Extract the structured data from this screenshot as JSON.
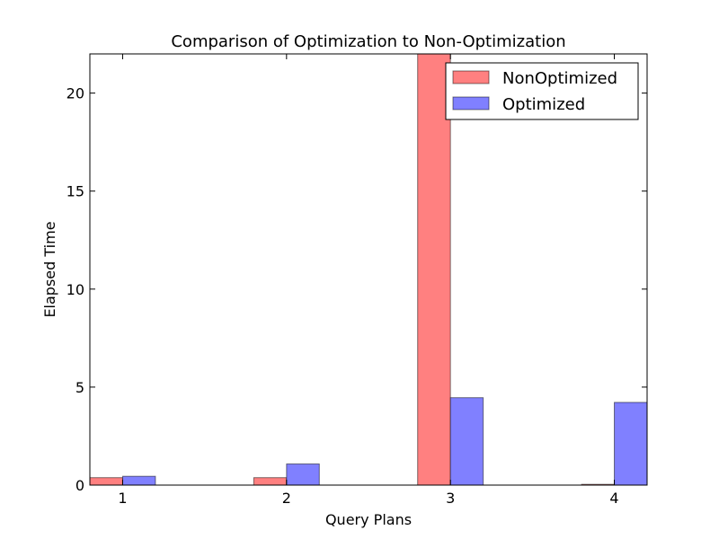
{
  "chart_data": {
    "type": "bar",
    "title": "Comparison of Optimization to Non-Optimization",
    "xlabel": "Query Plans",
    "ylabel": "Elapsed Time",
    "categories": [
      "1",
      "2",
      "3",
      "4"
    ],
    "x": [
      1,
      2,
      3,
      4
    ],
    "xlim": [
      0.8,
      4.2
    ],
    "ylim": [
      0,
      22
    ],
    "yticks": [
      0,
      5,
      10,
      15,
      20
    ],
    "bar_width": 0.2,
    "grid": false,
    "legend_position": "top-right",
    "series": [
      {
        "name": "NonOptimized",
        "color": "#ff8080",
        "values": [
          0.38,
          0.38,
          22.0,
          0.04
        ]
      },
      {
        "name": "Optimized",
        "color": "#8080ff",
        "values": [
          0.45,
          1.08,
          4.46,
          4.22
        ]
      }
    ]
  }
}
